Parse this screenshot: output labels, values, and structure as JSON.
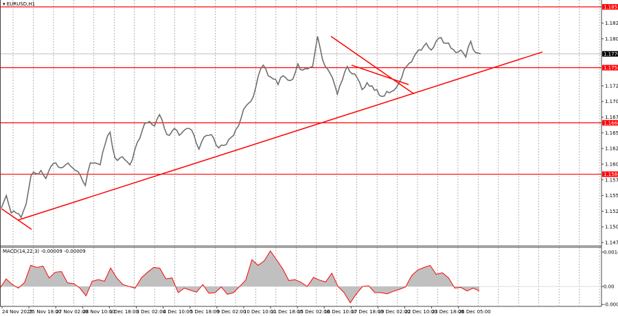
{
  "window": {
    "symbol_title": "EURUSD,H1",
    "menu_icon": "triangle-down-icon"
  },
  "colors": {
    "price": "#6e6e6e",
    "levels": "#ff0000",
    "trendlines": "#ff0000",
    "current_price_bg": "#000000",
    "macd_hist": "#c0c0c0",
    "macd_signal": "#ff0000",
    "grid": "#808080"
  },
  "chart_data": [
    {
      "type": "line",
      "title": "EURUSD,H1",
      "ylim": [
        1.1475,
        1.1851
      ],
      "y_ticks": [
        "1.1825",
        "1.1800",
        "1.1725",
        "1.1700",
        "1.1675",
        "1.1650",
        "1.1625",
        "1.1600",
        "1.1575",
        "1.1550",
        "1.1525",
        "1.1500",
        "1.1475"
      ],
      "x_ticks": [
        "24 Nov 2025",
        "25 Nov 18:00",
        "27 Nov 02:00",
        "28 Nov 10:00",
        "1 Dec 18:00",
        "3 Dec 02:00",
        "4 Dec 10:00",
        "5 Dec 18:00",
        "9 Dec 02:00",
        "10 Dec 10:00",
        "11 Dec 18:00",
        "15 Dec 02:00",
        "16 Dec 10:00",
        "17 Dec 18:00",
        "19 Dec 02:00",
        "22 Dec 10:00",
        "23 Dec 18:00",
        "26 Dec 05:00"
      ],
      "grid": true,
      "close": [
        1.153,
        1.155,
        1.1522,
        1.1522,
        1.1515,
        1.1536,
        1.1582,
        1.1585,
        1.159,
        1.1577,
        1.1596,
        1.1602,
        1.1594,
        1.1599,
        1.1597,
        1.159,
        1.1582,
        1.1566,
        1.1602,
        1.1602,
        1.1599,
        1.1632,
        1.1651,
        1.161,
        1.161,
        1.1607,
        1.1599,
        1.1623,
        1.1641,
        1.1665,
        1.1668,
        1.1661,
        1.1679,
        1.1657,
        1.1646,
        1.1657,
        1.1646,
        1.1654,
        1.1657,
        1.1646,
        1.1624,
        1.1643,
        1.1646,
        1.1641,
        1.1626,
        1.163,
        1.1639,
        1.1646,
        1.1661,
        1.1687,
        1.1697,
        1.1708,
        1.1741,
        1.1758,
        1.1741,
        1.1736,
        1.1727,
        1.1741,
        1.1734,
        1.1736,
        1.176,
        1.175,
        1.1752,
        1.1756,
        1.1804,
        1.1767,
        1.1752,
        1.1738,
        1.1712,
        1.1734,
        1.1756,
        1.1744,
        1.1738,
        1.1719,
        1.173,
        1.1725,
        1.1719,
        1.1708,
        1.1716,
        1.1716,
        1.1723,
        1.1738,
        1.1756,
        1.1763,
        1.1778,
        1.1782,
        1.1793,
        1.1782,
        1.1796,
        1.1802,
        1.1793,
        1.1785,
        1.1778,
        1.1782,
        1.1771,
        1.1796,
        1.1778,
        1.1776
      ],
      "current_price": "1.1776",
      "levels": [
        {
          "price": 1.1851,
          "label": "1.1851"
        },
        {
          "price": 1.1754,
          "label": "1.1754"
        },
        {
          "price": 1.1666,
          "label": "1.1666"
        },
        {
          "price": 1.1584,
          "label": "1.1584"
        }
      ],
      "trendlines": [
        {
          "name": "ascending-support",
          "from_price": 1.1511,
          "to_price": 1.1779
        },
        {
          "name": "early-descending",
          "from_price": 1.1529,
          "to_price": 1.1496
        },
        {
          "name": "descending-from-high",
          "from_price": 1.1804,
          "to_price": 1.1712
        },
        {
          "name": "descending-inner",
          "from_price": 1.1758,
          "to_price": 1.1727
        }
      ]
    },
    {
      "type": "area",
      "title": "MACD(14,22,3) -0.00009 -0.00009",
      "ylim": [
        -0.00076,
        0.00145
      ],
      "y_ticks": [
        "0.00145",
        "0.00",
        "-0.00076"
      ],
      "values": [
        -7e-05,
        0.00032,
        8e-05,
        -7e-05,
        0.00017,
        0.00089,
        0.0008,
        0.00086,
        0.00036,
        0.0006,
        0.00063,
        0.00015,
        0.00012,
        -7e-05,
        -0.0004,
        0.00022,
        0.00029,
        0.00022,
        0.00078,
        0.00036,
        8e-05,
        0,
        -7e-05,
        0.00036,
        0.0006,
        0.0008,
        0.00077,
        0.00032,
        0.00036,
        -0.00026,
        -7e-05,
        -0.00016,
        -0.00024,
        8e-05,
        -0.00029,
        -0.00026,
        -2e-05,
        -0.00033,
        -0.00026,
        0,
        0.00027,
        0.00113,
        0.00089,
        0.00108,
        0.0015,
        0.00113,
        0.00075,
        0.00025,
        0.00029,
        0.00017,
        0,
        0.00038,
        0.00027,
        0.00019,
        0.00056,
        0,
        -0.00026,
        -0.00069,
        -0.00031,
        0,
        3e-05,
        -0.00026,
        -0.00026,
        -0.00031,
        -0.00021,
        -0.00012,
        -2e-05,
        0.00046,
        0.0007,
        0.0008,
        0.00089,
        0.00051,
        0.00058,
        0.00036,
        -7e-05,
        -4e-05,
        -0.00019,
        -7e-05,
        -0.00019
      ]
    }
  ]
}
